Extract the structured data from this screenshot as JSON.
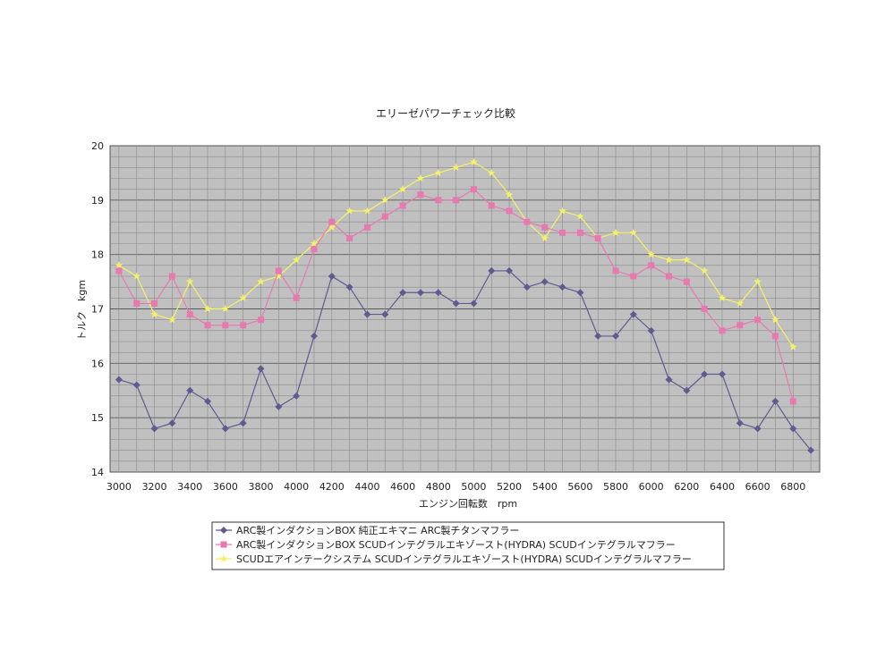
{
  "chart_data": {
    "type": "line",
    "title": "エリーゼパワーチェック比較",
    "xlabel": "エンジン回転数　rpm",
    "ylabel": "トルク　kgm",
    "xlim": [
      3000,
      6900
    ],
    "ylim": [
      14,
      20
    ],
    "y_ticks": [
      "14",
      "15",
      "16",
      "17",
      "18",
      "19",
      "20"
    ],
    "x_ticks": [
      "3000",
      "3200",
      "3400",
      "3600",
      "3800",
      "4000",
      "4200",
      "4400",
      "4600",
      "4800",
      "5000",
      "5200",
      "5400",
      "5600",
      "5800",
      "6000",
      "6200",
      "6400",
      "6600",
      "6800"
    ],
    "grid": true,
    "plot_background": "#c0c0c0",
    "legend_position": "bottom",
    "x": [
      3000,
      3100,
      3200,
      3300,
      3400,
      3500,
      3600,
      3700,
      3800,
      3900,
      4000,
      4100,
      4200,
      4300,
      4400,
      4500,
      4600,
      4700,
      4800,
      4900,
      5000,
      5100,
      5200,
      5300,
      5400,
      5500,
      5600,
      5700,
      5800,
      5900,
      6000,
      6100,
      6200,
      6300,
      6400,
      6500,
      6600,
      6700,
      6800,
      6900
    ],
    "series": [
      {
        "name": "ARC製インダクションBOX 純正エキマニ ARC製チタンマフラー",
        "color": "#5f5a8f",
        "marker": "diamond",
        "values": [
          15.7,
          15.6,
          14.8,
          14.9,
          15.5,
          15.3,
          14.8,
          14.9,
          15.9,
          15.2,
          15.4,
          16.5,
          17.6,
          17.4,
          16.9,
          16.9,
          17.3,
          17.3,
          17.3,
          17.1,
          17.1,
          17.7,
          17.7,
          17.4,
          17.5,
          17.4,
          17.3,
          16.5,
          16.5,
          16.9,
          16.6,
          15.7,
          15.5,
          15.8,
          15.8,
          14.9,
          14.8,
          15.3,
          14.8,
          14.4
        ]
      },
      {
        "name": "ARC製インダクションBOX SCUDインテグラルエキゾースト(HYDRA) SCUDインテグラルマフラー",
        "color": "#e879b0",
        "marker": "square",
        "values": [
          17.7,
          17.1,
          17.1,
          17.6,
          16.9,
          16.7,
          16.7,
          16.7,
          16.8,
          17.7,
          17.2,
          18.1,
          18.6,
          18.3,
          18.5,
          18.7,
          18.9,
          19.1,
          19.0,
          19.0,
          19.2,
          18.9,
          18.8,
          18.6,
          18.5,
          18.4,
          18.4,
          18.3,
          17.7,
          17.6,
          17.8,
          17.6,
          17.5,
          17.0,
          16.6,
          16.7,
          16.8,
          16.5,
          15.3,
          null
        ]
      },
      {
        "name": "SCUDエアインテークシステム SCUDインテグラルエキゾースト(HYDRA) SCUDインテグラルマフラー",
        "color": "#f4f06a",
        "marker": "star",
        "values": [
          17.8,
          17.6,
          16.9,
          16.8,
          17.5,
          17.0,
          17.0,
          17.2,
          17.5,
          17.6,
          17.9,
          18.2,
          18.5,
          18.8,
          18.8,
          19.0,
          19.2,
          19.4,
          19.5,
          19.6,
          19.7,
          19.5,
          19.1,
          18.6,
          18.3,
          18.8,
          18.7,
          18.3,
          18.4,
          18.4,
          18.0,
          17.9,
          17.9,
          17.7,
          17.2,
          17.1,
          17.5,
          16.8,
          16.3,
          null
        ]
      }
    ]
  }
}
